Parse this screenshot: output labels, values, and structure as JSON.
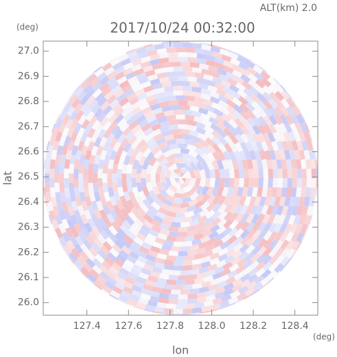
{
  "chart_data": {
    "type": "ppi",
    "title": "2017/10/24 00:32:00",
    "subtitle": "ALT(km) 2.0",
    "x_label": "lon",
    "y_label": "lat",
    "x_unit": "(deg)",
    "y_unit": "(deg)",
    "xlim": [
      127.19,
      128.51
    ],
    "ylim": [
      25.95,
      27.04
    ],
    "xticks": [
      127.4,
      127.6,
      127.8,
      {
        "value": 128,
        "label": "128.0"
      },
      128.2,
      128.4
    ],
    "yticks": [
      {
        "value": 26,
        "label": "26.0"
      },
      26.1,
      26.2,
      26.3,
      26.4,
      26.5,
      26.6,
      26.7,
      26.8,
      26.9,
      {
        "value": 27,
        "label": "27.0"
      }
    ]
  }
}
